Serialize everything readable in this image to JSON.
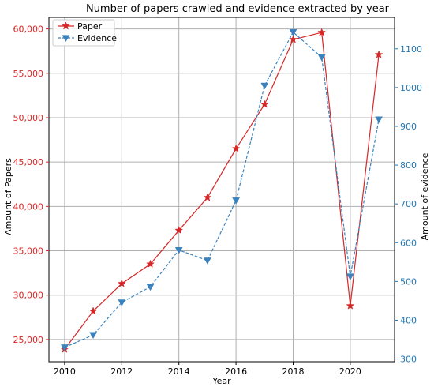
{
  "chart_data": {
    "type": "line",
    "title": "Number of papers crawled and evidence extracted by year",
    "xlabel": "Year",
    "ylabel_left": "Amount of Papers",
    "ylabel_right": "Amount of evidence",
    "x": [
      2010,
      2011,
      2012,
      2013,
      2014,
      2015,
      2016,
      2017,
      2018,
      2019,
      2020,
      2021
    ],
    "xlim": [
      2009.45,
      2021.55
    ],
    "x_ticks": [
      2010,
      2012,
      2014,
      2016,
      2018,
      2020
    ],
    "x_tick_labels": [
      "2010",
      "2012",
      "2014",
      "2016",
      "2018",
      "2020"
    ],
    "grid": true,
    "legend_position": "top-left",
    "left_axis": {
      "ylim": [
        22500,
        61300
      ],
      "ticks": [
        25000,
        30000,
        35000,
        40000,
        45000,
        50000,
        55000,
        60000
      ],
      "tick_labels": [
        "25,000",
        "30,000",
        "35,000",
        "40,000",
        "45,000",
        "50,000",
        "55,000",
        "60,000"
      ],
      "color": "#d62728"
    },
    "right_axis": {
      "ylim": [
        293,
        1181
      ],
      "ticks": [
        300,
        400,
        500,
        600,
        700,
        800,
        900,
        1000,
        1100
      ],
      "tick_labels": [
        "300",
        "400",
        "500",
        "600",
        "700",
        "800",
        "900",
        "1000",
        "1100"
      ],
      "color": "#1f77b4"
    },
    "series": [
      {
        "name": "Paper",
        "axis": "left",
        "color": "#d62728",
        "line_style": "solid",
        "marker": "star",
        "values": [
          23900,
          28200,
          31300,
          33500,
          37300,
          41000,
          46500,
          51500,
          58800,
          59600,
          28800,
          57100
        ]
      },
      {
        "name": "Evidence",
        "axis": "right",
        "color": "#3b82bd",
        "line_style": "dashed",
        "marker": "triangle-down",
        "values": [
          330,
          362,
          446,
          486,
          581,
          554,
          709,
          1005,
          1143,
          1078,
          513,
          918
        ]
      }
    ]
  }
}
